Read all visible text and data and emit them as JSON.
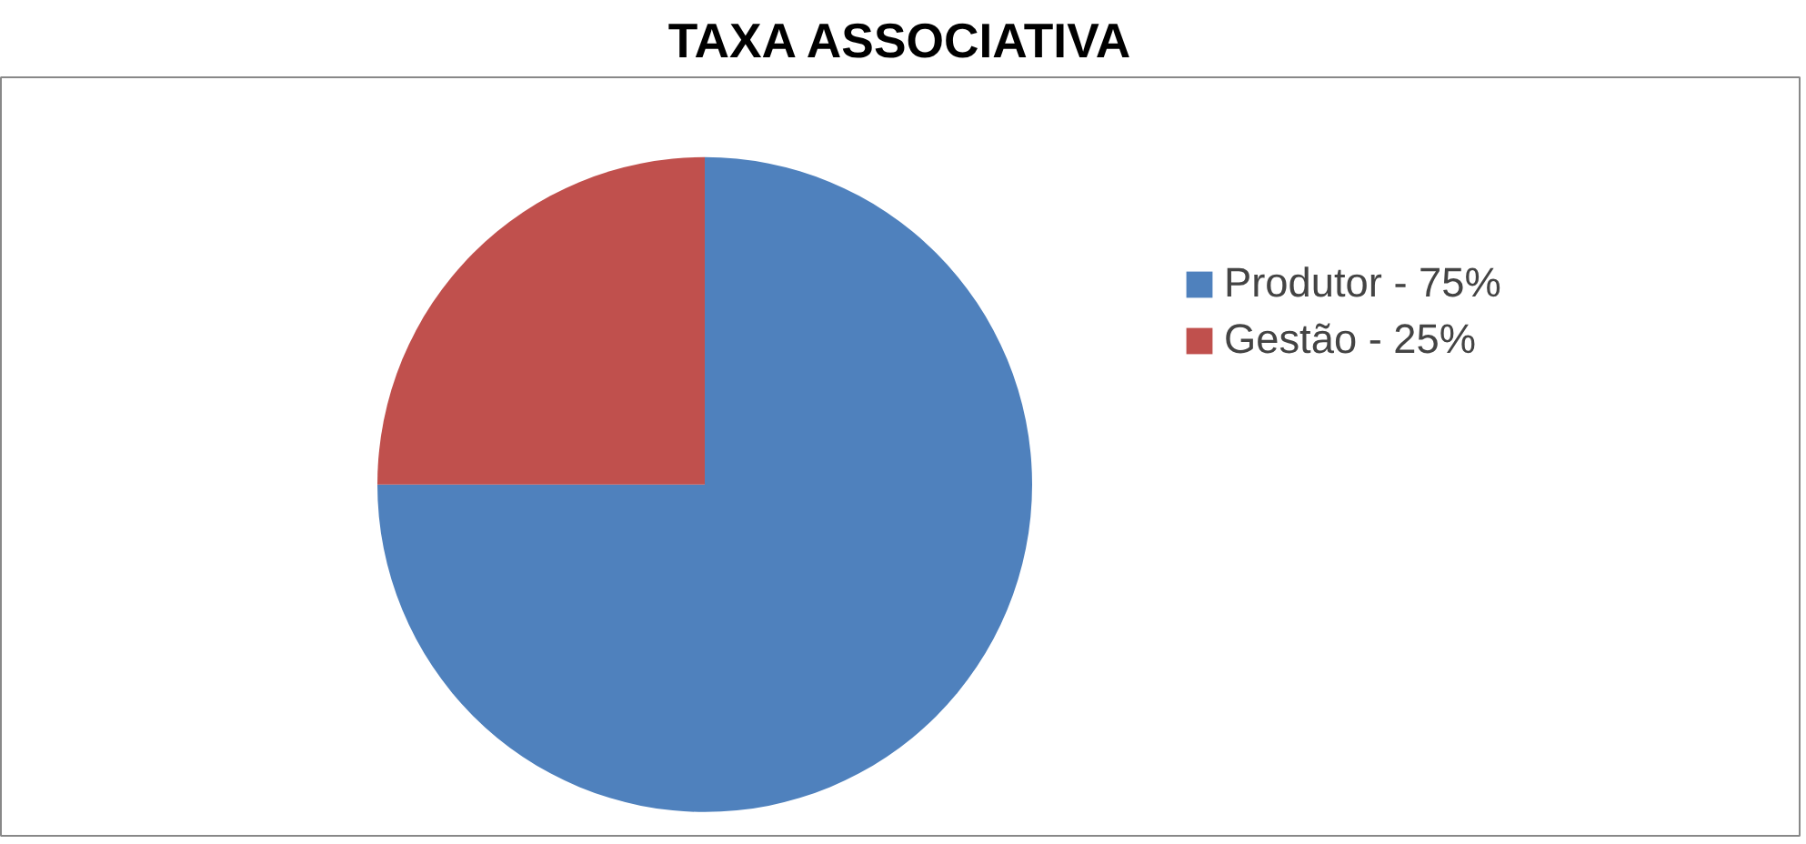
{
  "chart_data": {
    "type": "pie",
    "title": "TAXA ASSOCIATIVA",
    "categories": [
      "Produtor - 75%",
      "Gestão - 25%"
    ],
    "values": [
      75,
      25
    ],
    "colors": [
      "#4f81bd",
      "#c0504d"
    ],
    "legend": "right"
  }
}
